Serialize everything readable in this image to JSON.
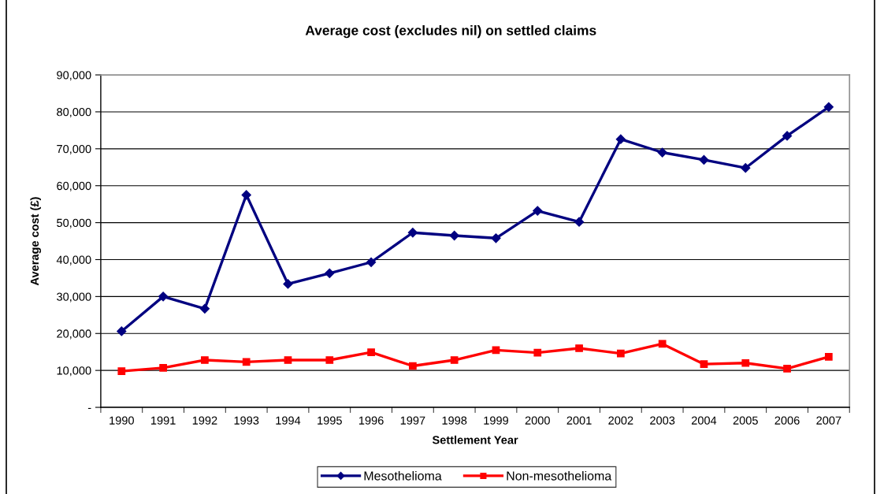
{
  "chart_data": {
    "type": "line",
    "title": "Average cost (excludes nil) on settled claims",
    "xlabel": "Settlement Year",
    "ylabel": "Average cost (£)",
    "categories": [
      "1990",
      "1991",
      "1992",
      "1993",
      "1994",
      "1995",
      "1996",
      "1997",
      "1998",
      "1999",
      "2000",
      "2001",
      "2002",
      "2003",
      "2004",
      "2005",
      "2006",
      "2007"
    ],
    "series": [
      {
        "name": "Mesothelioma",
        "color": "#000080",
        "marker": "diamond",
        "values": [
          20600,
          30000,
          26700,
          57500,
          33400,
          36300,
          39300,
          47300,
          46500,
          45800,
          53200,
          50200,
          72600,
          69000,
          67000,
          64800,
          73500,
          81300
        ]
      },
      {
        "name": "Non-mesothelioma",
        "color": "#ff0000",
        "marker": "square",
        "values": [
          9800,
          10700,
          12800,
          12300,
          12800,
          12800,
          14900,
          11200,
          12800,
          15500,
          14800,
          16000,
          14600,
          17200,
          11700,
          12000,
          10500,
          13700
        ]
      }
    ],
    "ylim": [
      0,
      90000
    ],
    "yticks": [
      {
        "value": 0,
        "label": "-"
      },
      {
        "value": 10000,
        "label": "10,000"
      },
      {
        "value": 20000,
        "label": "20,000"
      },
      {
        "value": 30000,
        "label": "30,000"
      },
      {
        "value": 40000,
        "label": "40,000"
      },
      {
        "value": 50000,
        "label": "50,000"
      },
      {
        "value": 60000,
        "label": "60,000"
      },
      {
        "value": 70000,
        "label": "70,000"
      },
      {
        "value": 80000,
        "label": "80,000"
      },
      {
        "value": 90000,
        "label": "90,000"
      }
    ],
    "grid": "y",
    "legend": "bottom",
    "line_style": "solid"
  }
}
